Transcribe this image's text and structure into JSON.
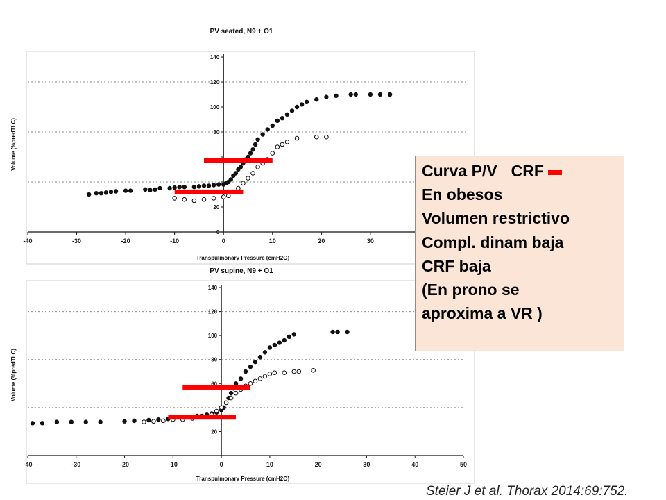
{
  "chart_data": [
    {
      "type": "scatter",
      "title": "PV seated, N9 + O1",
      "xlabel": "Transpulmonary Pressure (cmH2O)",
      "ylabel": "Volume (%predTLC)",
      "xlim": [
        -40,
        50
      ],
      "ylim": [
        0,
        140
      ],
      "xticks": [
        -40,
        -30,
        -20,
        -10,
        0,
        10,
        20,
        30
      ],
      "yticks": [
        0,
        20,
        40,
        60,
        80,
        100,
        120,
        140
      ],
      "ytick_labels": [
        "0",
        "20",
        "",
        "",
        "80",
        "100",
        "120",
        "140"
      ],
      "grid": "dotted horizontal at 40, 80, 120",
      "series": [
        {
          "marker": "filled",
          "color": "#111111",
          "points": [
            [
              -27.5,
              30
            ],
            [
              -26,
              31
            ],
            [
              -25,
              31
            ],
            [
              -24,
              31.5
            ],
            [
              -23,
              32
            ],
            [
              -22,
              32.5
            ],
            [
              -20,
              33
            ],
            [
              -19,
              33
            ],
            [
              -16,
              34
            ],
            [
              -15,
              33.5
            ],
            [
              -14,
              34
            ],
            [
              -13,
              35
            ],
            [
              -11,
              35
            ],
            [
              -10,
              35.5
            ],
            [
              -9,
              36
            ],
            [
              -8,
              36
            ],
            [
              -6,
              36
            ],
            [
              -5,
              36.5
            ],
            [
              -4,
              37
            ],
            [
              -3,
              37
            ],
            [
              -2,
              37.5
            ],
            [
              -1,
              38
            ],
            [
              0,
              38
            ],
            [
              0.5,
              39
            ],
            [
              1,
              40
            ],
            [
              1.5,
              42
            ],
            [
              2,
              45
            ],
            [
              2.5,
              47
            ],
            [
              3,
              50
            ],
            [
              3.5,
              52
            ],
            [
              4,
              55
            ],
            [
              4.5,
              58
            ],
            [
              5,
              60
            ],
            [
              5.5,
              63
            ],
            [
              6,
              66
            ],
            [
              6.5,
              70
            ],
            [
              7,
              74
            ],
            [
              8,
              78
            ],
            [
              9,
              82
            ],
            [
              10,
              85
            ],
            [
              11,
              89
            ],
            [
              12,
              91
            ],
            [
              13,
              94
            ],
            [
              14,
              97
            ],
            [
              15,
              100
            ],
            [
              16,
              102
            ],
            [
              17,
              104
            ],
            [
              19,
              106
            ],
            [
              21,
              108
            ],
            [
              23,
              109
            ],
            [
              26,
              110
            ],
            [
              27,
              110
            ],
            [
              30,
              110
            ],
            [
              32,
              110
            ],
            [
              34,
              110
            ]
          ]
        },
        {
          "marker": "open",
          "color": "#111111",
          "points": [
            [
              -10,
              27
            ],
            [
              -8,
              26
            ],
            [
              -6,
              25
            ],
            [
              -4,
              26
            ],
            [
              -2,
              27
            ],
            [
              0,
              28
            ],
            [
              1,
              29
            ],
            [
              2,
              32
            ],
            [
              3,
              35
            ],
            [
              4,
              39
            ],
            [
              5,
              43
            ],
            [
              6,
              47
            ],
            [
              7,
              52
            ],
            [
              8,
              55
            ],
            [
              9,
              58
            ],
            [
              10,
              63
            ],
            [
              11,
              68
            ],
            [
              12,
              70
            ],
            [
              13,
              72
            ],
            [
              15,
              75
            ],
            [
              19,
              76
            ],
            [
              21,
              76
            ]
          ]
        }
      ],
      "annotations": [
        {
          "type": "red-bar",
          "x": [
            -4,
            10
          ],
          "y": 57
        },
        {
          "type": "red-bar",
          "x": [
            -10,
            4
          ],
          "y": 32
        }
      ]
    },
    {
      "type": "scatter",
      "title": "PV supine, N9 + O1",
      "xlabel": "Transpulmonary Pressure (cmH2O)",
      "ylabel": "Volume (%predTLC)",
      "xlim": [
        -40,
        50
      ],
      "ylim": [
        0,
        140
      ],
      "xticks": [
        -40,
        -30,
        -20,
        -10,
        0,
        10,
        20,
        30,
        40,
        50
      ],
      "yticks": [
        0,
        20,
        40,
        60,
        80,
        100,
        120,
        140
      ],
      "ytick_labels": [
        "",
        "20",
        "",
        "60",
        "80",
        "100",
        "120",
        "140"
      ],
      "grid": "dotted horizontal at 40, 80, 120",
      "series": [
        {
          "marker": "filled",
          "color": "#111111",
          "points": [
            [
              -39,
              27
            ],
            [
              -37,
              27
            ],
            [
              -34,
              28
            ],
            [
              -31,
              28
            ],
            [
              -28,
              28
            ],
            [
              -25,
              28
            ],
            [
              -20,
              28.5
            ],
            [
              -18,
              29
            ],
            [
              -15,
              29.5
            ],
            [
              -13,
              30
            ],
            [
              -11,
              30.5
            ],
            [
              -10,
              31
            ],
            [
              -8,
              31.5
            ],
            [
              -6,
              32
            ],
            [
              -5,
              33
            ],
            [
              -4,
              33
            ],
            [
              -3,
              34
            ],
            [
              -2,
              35
            ],
            [
              -1,
              36
            ],
            [
              0,
              38
            ],
            [
              0.5,
              40
            ],
            [
              1,
              44
            ],
            [
              1.5,
              48
            ],
            [
              2,
              52
            ],
            [
              2.5,
              56
            ],
            [
              3,
              60
            ],
            [
              4,
              64
            ],
            [
              5,
              70
            ],
            [
              6,
              74
            ],
            [
              7,
              78
            ],
            [
              8,
              82
            ],
            [
              9,
              86
            ],
            [
              10,
              90
            ],
            [
              11,
              92
            ],
            [
              12,
              94
            ],
            [
              13,
              96
            ],
            [
              14,
              99
            ],
            [
              15,
              101
            ],
            [
              23,
              103
            ],
            [
              24,
              103
            ],
            [
              26,
              103
            ]
          ]
        },
        {
          "marker": "open",
          "color": "#111111",
          "points": [
            [
              -16,
              28
            ],
            [
              -14,
              28.5
            ],
            [
              -12,
              29
            ],
            [
              -10,
              30
            ],
            [
              -8,
              30
            ],
            [
              -6,
              31
            ],
            [
              -4,
              32
            ],
            [
              -2,
              34
            ],
            [
              -1,
              37
            ],
            [
              0,
              40
            ],
            [
              1,
              44
            ],
            [
              2,
              48
            ],
            [
              3,
              52
            ],
            [
              4,
              55
            ],
            [
              5,
              58
            ],
            [
              6,
              60
            ],
            [
              7,
              62
            ],
            [
              8,
              64
            ],
            [
              9,
              66
            ],
            [
              10,
              68
            ],
            [
              11,
              69
            ],
            [
              13,
              69
            ],
            [
              15,
              70
            ],
            [
              16,
              70
            ],
            [
              19,
              71
            ]
          ]
        }
      ],
      "annotations": [
        {
          "type": "red-bar",
          "x": [
            -8,
            6
          ],
          "y": 57
        },
        {
          "type": "red-bar",
          "x": [
            -11,
            3
          ],
          "y": 32
        }
      ]
    }
  ],
  "note": {
    "line1": "Curva P/V",
    "line1b": "CRF",
    "lines": [
      "En obesos",
      "Volumen restrictivo",
      "Compl. dinam baja",
      "CRF baja",
      "(En prono se",
      "aproxima a VR )"
    ]
  },
  "citation": "Steier J et al. Thorax 2014:69:752."
}
